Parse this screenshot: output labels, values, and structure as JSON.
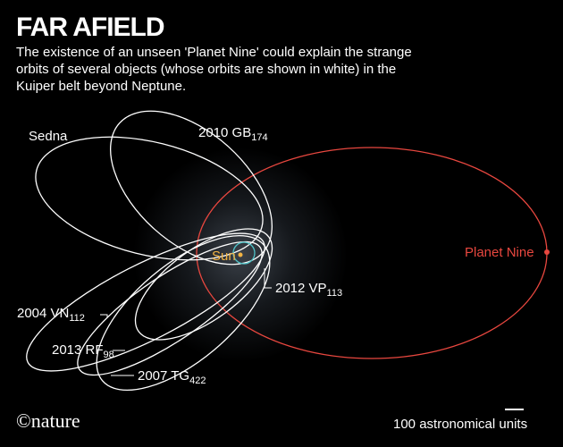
{
  "header": {
    "title": "FAR AFIELD",
    "subtitle_lines": [
      "The existence of an unseen 'Planet Nine' could explain the strange",
      "orbits of several objects (whose orbits are shown in white) in the",
      "Kuiper belt beyond Neptune."
    ]
  },
  "labels": {
    "sedna": {
      "text": "Sedna"
    },
    "gb174": {
      "text": "2010 GB",
      "subscript": "174"
    },
    "planet_nine": {
      "text": "Planet Nine"
    },
    "sun": {
      "text": "Sun"
    },
    "vp113": {
      "text": "2012 VP",
      "subscript": "113"
    },
    "vn112": {
      "text": "2004 VN",
      "subscript": "112"
    },
    "rf98": {
      "text": "2013 RF",
      "subscript": "98"
    },
    "tg422": {
      "text": "2007 TG",
      "subscript": "422"
    }
  },
  "scale": {
    "label": "100 astronomical units"
  },
  "credit": "©nature"
}
